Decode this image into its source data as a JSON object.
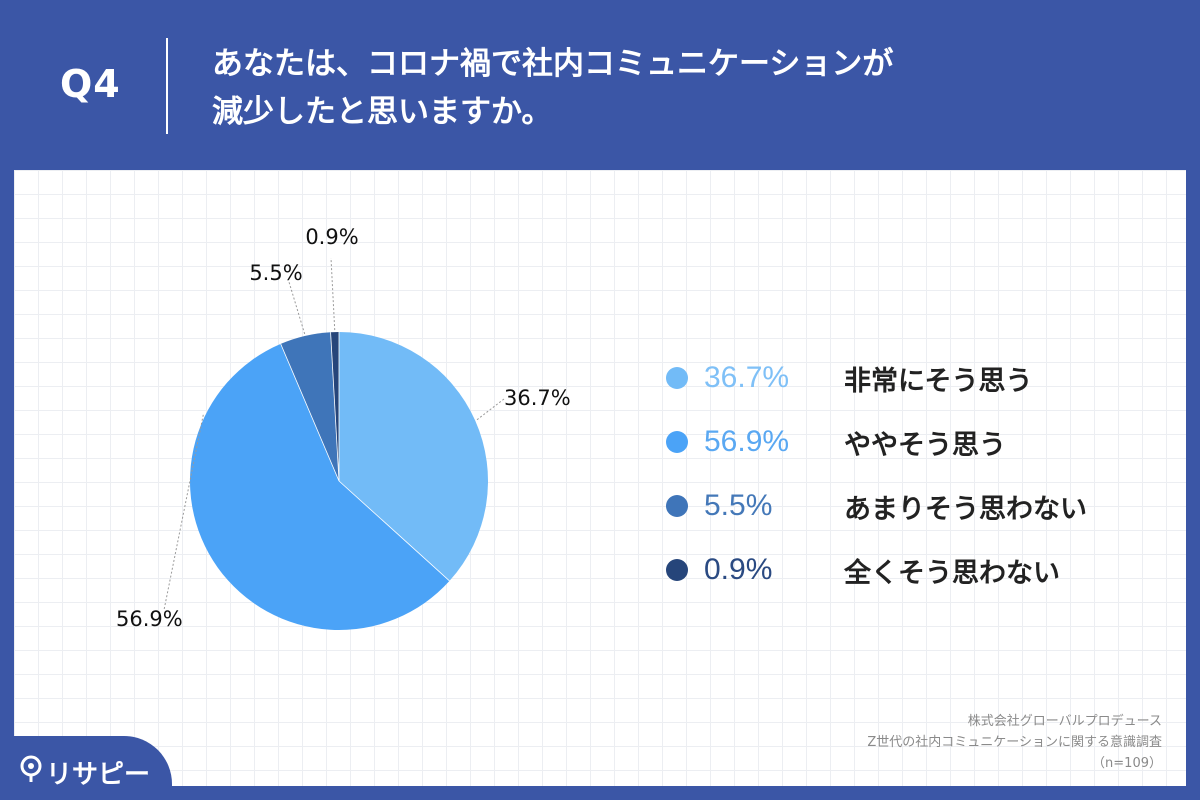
{
  "header": {
    "q_label": "Q4",
    "title_line1": "あなたは、コロナ禍で社内コミュニケーションが",
    "title_line2": "減少したと思いますか。"
  },
  "chart_data": {
    "type": "pie",
    "title": "あなたは、コロナ禍で社内コミュニケーションが減少したと思いますか。",
    "slices": [
      {
        "label": "非常にそう思う",
        "value": 36.7,
        "display": "36.7%",
        "color": "#72bbf7"
      },
      {
        "label": "ややそう思う",
        "value": 56.9,
        "display": "56.9%",
        "color": "#4ba3f7"
      },
      {
        "label": "あまりそう思わない",
        "value": 5.5,
        "display": "5.5%",
        "color": "#3f75b9"
      },
      {
        "label": "全くそう思わない",
        "value": 0.9,
        "display": "0.9%",
        "color": "#26457a"
      }
    ],
    "legend_placement": "right",
    "grid": true
  },
  "legend": {
    "value_colors": [
      "#7fc0f7",
      "#5aa8f2",
      "#4478b8",
      "#2a4a82"
    ]
  },
  "source": {
    "line1": "株式会社グローバルプロデュース",
    "line2": "Z世代の社内コミュニケーションに関する意識調査",
    "line3": "（n=109）"
  },
  "brand": {
    "name": "リサピー"
  }
}
